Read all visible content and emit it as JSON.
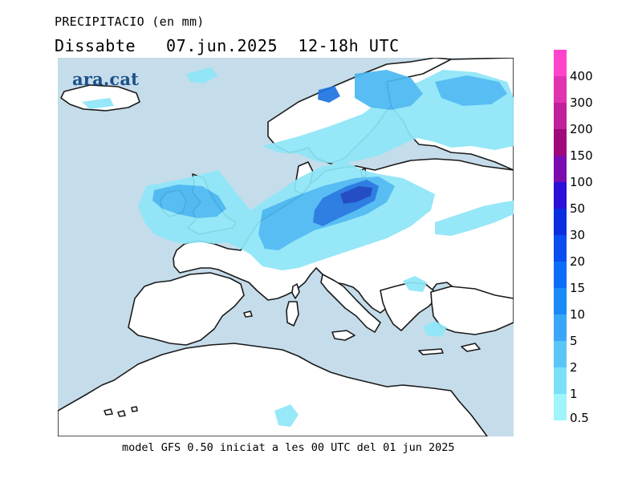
{
  "title": "PRECIPITACIO (en mm)",
  "subtitle": "Dissabte   07.jun.2025  12-18h UTC",
  "logo": "ara.cat",
  "footer": "model GFS 0.50 iniciat a les 00 UTC del 01 jun 2025",
  "legend": {
    "labels": [
      "400",
      "300",
      "200",
      "150",
      "100",
      "50",
      "30",
      "20",
      "15",
      "10",
      "5",
      "2",
      "1",
      "0.5"
    ],
    "colors": [
      "#ff44cc",
      "#e033b0",
      "#c0209a",
      "#a0087e",
      "#7a0cb0",
      "#2a10d8",
      "#0a2ee0",
      "#0a4ef0",
      "#0a6ef8",
      "#1a8af8",
      "#3aa6f8",
      "#5ac6f8",
      "#7ae0f8",
      "#a0f4fc"
    ]
  },
  "colors": {
    "sea": "#c5dcea",
    "land": "#ffffff",
    "coast": "#1a1a1a",
    "precip_light": "#8ee6f8",
    "precip_mid": "#4ab8f2",
    "precip_heavy": "#1e74e0",
    "precip_max": "#1440c0"
  }
}
